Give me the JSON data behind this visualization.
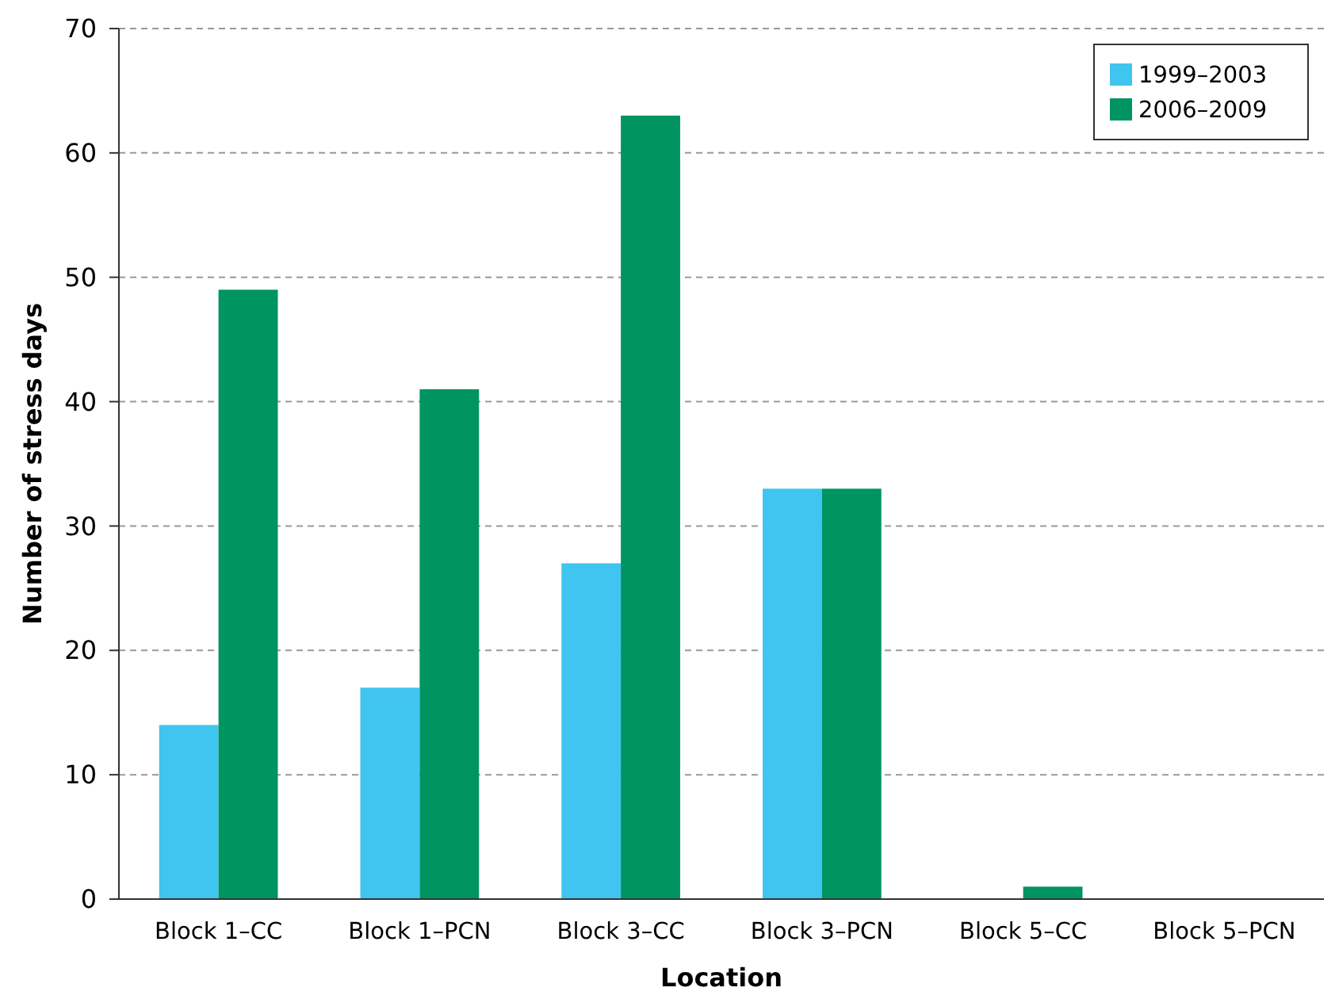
{
  "chart_data": {
    "type": "bar",
    "xlabel": "Location",
    "ylabel": "Number of stress days",
    "categories": [
      "Block 1–CC",
      "Block 1–PCN",
      "Block 3–CC",
      "Block 3–PCN",
      "Block 5–CC",
      "Block 5–PCN"
    ],
    "series": [
      {
        "name": "1999–2003",
        "color": "#40c4f0",
        "values": [
          14,
          17,
          27,
          33,
          0,
          0
        ]
      },
      {
        "name": "2006–2009",
        "color": "#009460",
        "values": [
          49,
          41,
          63,
          33,
          1,
          0
        ]
      }
    ],
    "ylim": [
      0,
      70
    ],
    "yticks": [
      0,
      10,
      20,
      30,
      40,
      50,
      60,
      70
    ],
    "grid": "y",
    "legend": "top right"
  }
}
